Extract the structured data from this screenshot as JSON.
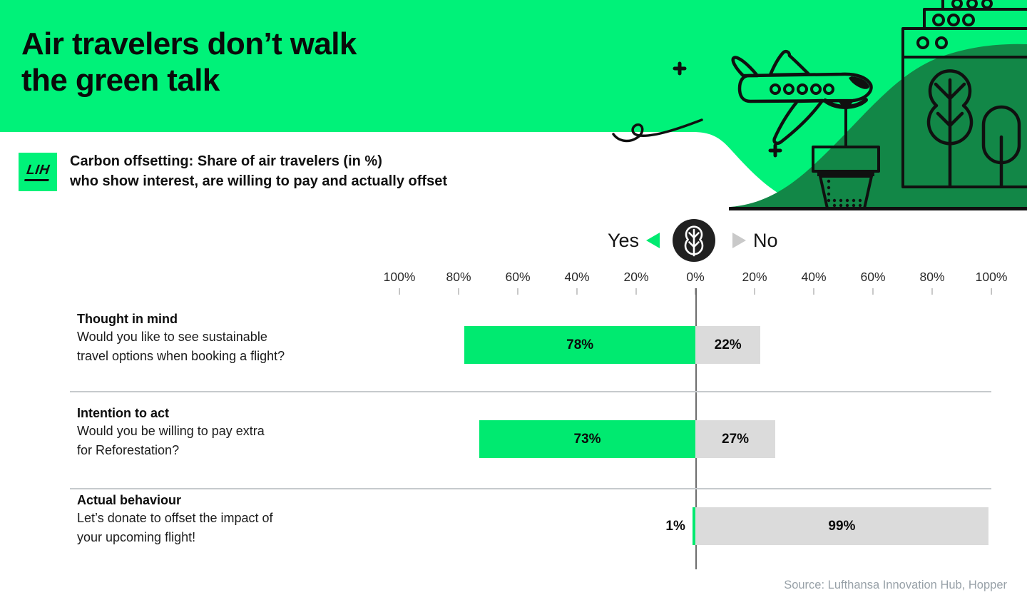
{
  "header": {
    "title_line1": "Air travelers don’t walk",
    "title_line2": "the green talk",
    "logo_text": "LIH",
    "subtitle_line1": "Carbon offsetting: Share of air travelers (in %)",
    "subtitle_line2": "who show interest, are willing to pay and actually offset"
  },
  "legend": {
    "yes_label": "Yes",
    "no_label": "No",
    "center_icon": "tree-icon"
  },
  "axis": {
    "ticks": [
      "100%",
      "80%",
      "60%",
      "40%",
      "20%",
      "0%",
      "20%",
      "40%",
      "60%",
      "80%",
      "100%"
    ]
  },
  "chart_data": {
    "type": "bar",
    "orientation": "diverging-horizontal",
    "unit": "%",
    "title": "Carbon offsetting: Share of air travelers (in %) who show interest, are willing to pay and actually offset",
    "axis_ticks_pct": [
      100,
      80,
      60,
      40,
      20,
      0,
      20,
      40,
      60,
      80,
      100
    ],
    "axis_range": [
      -100,
      100
    ],
    "legend_position": "top-center",
    "grid": false,
    "rows": [
      {
        "title": "Thought in mind",
        "question_line1": "Would you like to see sustainable",
        "question_line2": "travel options when booking a flight?",
        "yes_pct": 78,
        "no_pct": 22,
        "yes_label": "78%",
        "no_label": "22%"
      },
      {
        "title": "Intention to act",
        "question_line1": "Would you be willing to pay extra",
        "question_line2": "for Reforestation?",
        "yes_pct": 73,
        "no_pct": 27,
        "yes_label": "73%",
        "no_label": "27%"
      },
      {
        "title": "Actual behaviour",
        "question_line1": "Let’s donate to offset the impact of",
        "question_line2": "your upcoming flight!",
        "yes_pct": 1,
        "no_pct": 99,
        "yes_label": "1%",
        "no_label": "99%"
      }
    ],
    "series": [
      {
        "name": "Yes",
        "values": [
          78,
          73,
          1
        ]
      },
      {
        "name": "No",
        "values": [
          22,
          27,
          99
        ]
      }
    ]
  },
  "source": "Source: Lufthansa Innovation Hub, Hopper",
  "icons": {
    "legend_center": "tree-icon",
    "header_art": [
      "plane-icon",
      "potted-plant-icon",
      "green-building-icon",
      "trees-icon",
      "plus-sparkle-icon",
      "squiggle-icon"
    ]
  },
  "colors": {
    "accent_green": "#00F279",
    "bar_yes_green": "#00EA70",
    "bar_no_gray": "#DBDBDB",
    "hill_green": "#128747",
    "ink": "#101010",
    "legend_circle": "#212121",
    "separator": "#C6CACD",
    "axis_line": "#6E6E6E",
    "source_text": "#98A1A8"
  }
}
